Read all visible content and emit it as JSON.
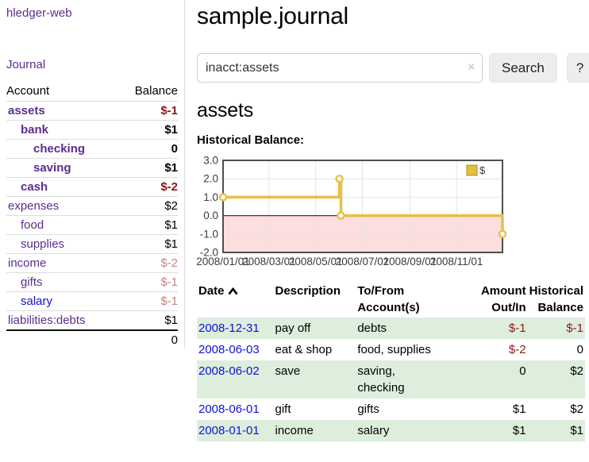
{
  "app": {
    "brand": "hledger-web",
    "nav": {
      "journal_label": "Journal"
    }
  },
  "sidebar": {
    "header": {
      "account": "Account",
      "balance": "Balance"
    },
    "accounts": [
      {
        "label": "assets",
        "balance": "$-1",
        "level": 1,
        "matched": true,
        "balance_tone": "neg-dark"
      },
      {
        "label": "bank",
        "balance": "$1",
        "level": 2,
        "matched": true
      },
      {
        "label": "checking",
        "balance": "0",
        "level": 3,
        "matched": true
      },
      {
        "label": "saving",
        "balance": "$1",
        "level": 3,
        "matched": true
      },
      {
        "label": "cash",
        "balance": "$-2",
        "level": 2,
        "matched": true,
        "balance_tone": "neg-dark"
      },
      {
        "label": "expenses",
        "balance": "$2",
        "level": 1
      },
      {
        "label": "food",
        "balance": "$1",
        "level": 2
      },
      {
        "label": "supplies",
        "balance": "$1",
        "level": 2
      },
      {
        "label": "income",
        "balance": "$-2",
        "level": 1,
        "balance_tone": "neg-light"
      },
      {
        "label": "gifts",
        "balance": "$-1",
        "level": 2,
        "balance_tone": "neg-light"
      },
      {
        "label": "salary",
        "balance": "$-1",
        "level": 2,
        "balance_tone": "neg-light",
        "unvisited": true
      },
      {
        "label": "liabilities:debts",
        "balance": "$1",
        "level": 1
      }
    ],
    "total": "0"
  },
  "main": {
    "title": "sample.journal",
    "search": {
      "value": "inacct:assets",
      "clear_glyph": "×",
      "button_label": "Search",
      "help_label": "?"
    },
    "account_heading": "assets",
    "chart_title": "Historical Balance:"
  },
  "chart_data": {
    "type": "step-line",
    "title": "Historical Balance:",
    "legend": "$",
    "y_domain": [
      -2,
      3
    ],
    "y_ticks": [
      "3.0",
      "2.0",
      "1.0",
      "0.0",
      "-1.0",
      "-2.0"
    ],
    "x_domain": [
      "2008-01-01",
      "2008-12-31"
    ],
    "x_ticks": [
      "2008/01/01",
      "2008/03/01",
      "2008/05/01",
      "2008/07/01",
      "2008/09/01",
      "2008/11/01"
    ],
    "points": [
      {
        "date": "2008-01-01",
        "value": 1
      },
      {
        "date": "2008-06-01",
        "value": 2
      },
      {
        "date": "2008-06-03",
        "value": 0
      },
      {
        "date": "2008-12-31",
        "value": -1
      }
    ],
    "colors": {
      "line": "#e8bf47",
      "marker_fill": "#ffffff",
      "negative_fill": "#fcdede",
      "zero_line": "#8b1a1a",
      "frame": "#4f4f4f",
      "grid": "#e4e4e4",
      "legend_square": "#e6be3c",
      "tick_text": "#3a3a3a"
    }
  },
  "register": {
    "headers": {
      "date": "Date",
      "description": "Description",
      "tofrom": "To/From Account(s)",
      "amount": "Amount Out/In",
      "balance": "Historical Balance"
    },
    "rows": [
      {
        "date": "2008-12-31",
        "description": "pay off",
        "tofrom": "debts",
        "amount": "$-1",
        "balance": "$-1",
        "shaded": true,
        "amount_tone": "neg",
        "hist_tone": "neg"
      },
      {
        "date": "2008-06-03",
        "description": "eat & shop",
        "tofrom": "food, supplies",
        "amount": "$-2",
        "balance": "0",
        "shaded": false,
        "amount_tone": "neg"
      },
      {
        "date": "2008-06-02",
        "description": "save",
        "tofrom": "saving,\nchecking",
        "amount": "0",
        "balance": "$2",
        "shaded": true
      },
      {
        "date": "2008-06-01",
        "description": "gift",
        "tofrom": "gifts",
        "amount": "$1",
        "balance": "$2",
        "shaded": false
      },
      {
        "date": "2008-01-01",
        "description": "income",
        "tofrom": "salary",
        "amount": "$1",
        "balance": "$1",
        "shaded": true
      }
    ]
  }
}
